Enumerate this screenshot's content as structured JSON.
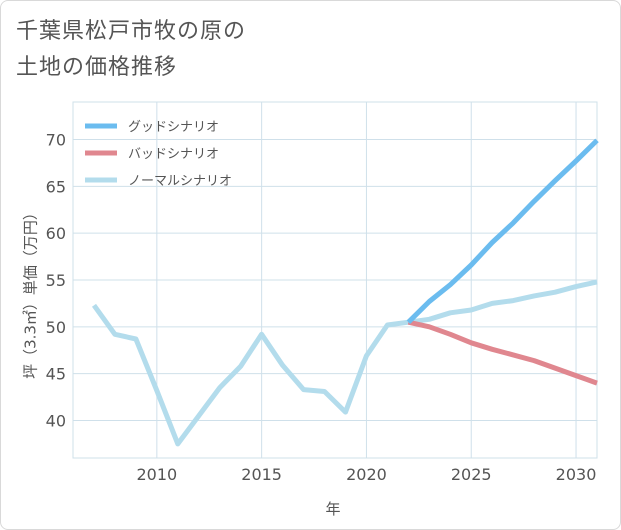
{
  "title_lines": [
    "千葉県松戸市牧の原の",
    "土地の価格推移"
  ],
  "chart_data": {
    "type": "line",
    "title": "千葉県松戸市牧の原の土地の価格推移",
    "xlabel": "年",
    "ylabel": "坪（3.3㎡）単価（万円）",
    "xlim": [
      2006,
      2031
    ],
    "ylim": [
      36,
      74
    ],
    "xticks": [
      2010,
      2015,
      2020,
      2025,
      2030
    ],
    "yticks": [
      40,
      45,
      50,
      55,
      60,
      65,
      70
    ],
    "grid": true,
    "legend_position": "top-left",
    "series": [
      {
        "name": "グッドシナリオ",
        "color": "#6bbcef",
        "x": [
          2022,
          2023,
          2024,
          2025,
          2026,
          2027,
          2028,
          2029,
          2030,
          2031
        ],
        "values": [
          50.5,
          52.7,
          54.5,
          56.6,
          59.0,
          61.1,
          63.4,
          65.6,
          67.7,
          69.9
        ]
      },
      {
        "name": "バッドシナリオ",
        "color": "#e0878f",
        "x": [
          2022,
          2023,
          2024,
          2025,
          2026,
          2027,
          2028,
          2029,
          2030,
          2031
        ],
        "values": [
          50.5,
          50.0,
          49.2,
          48.3,
          47.6,
          47.0,
          46.4,
          45.6,
          44.8,
          44.0
        ]
      },
      {
        "name": "ノーマルシナリオ",
        "color": "#b3dcec",
        "x": [
          2007,
          2008,
          2009,
          2010,
          2011,
          2012,
          2013,
          2014,
          2015,
          2016,
          2017,
          2018,
          2019,
          2020,
          2021,
          2022,
          2023,
          2024,
          2025,
          2026,
          2027,
          2028,
          2029,
          2030,
          2031
        ],
        "values": [
          52.3,
          49.2,
          48.7,
          43.2,
          37.5,
          40.5,
          43.5,
          45.8,
          49.2,
          45.9,
          43.3,
          43.1,
          40.9,
          46.9,
          50.2,
          50.5,
          50.8,
          51.5,
          51.8,
          52.5,
          52.8,
          53.3,
          53.7,
          54.3,
          54.8
        ]
      }
    ]
  }
}
